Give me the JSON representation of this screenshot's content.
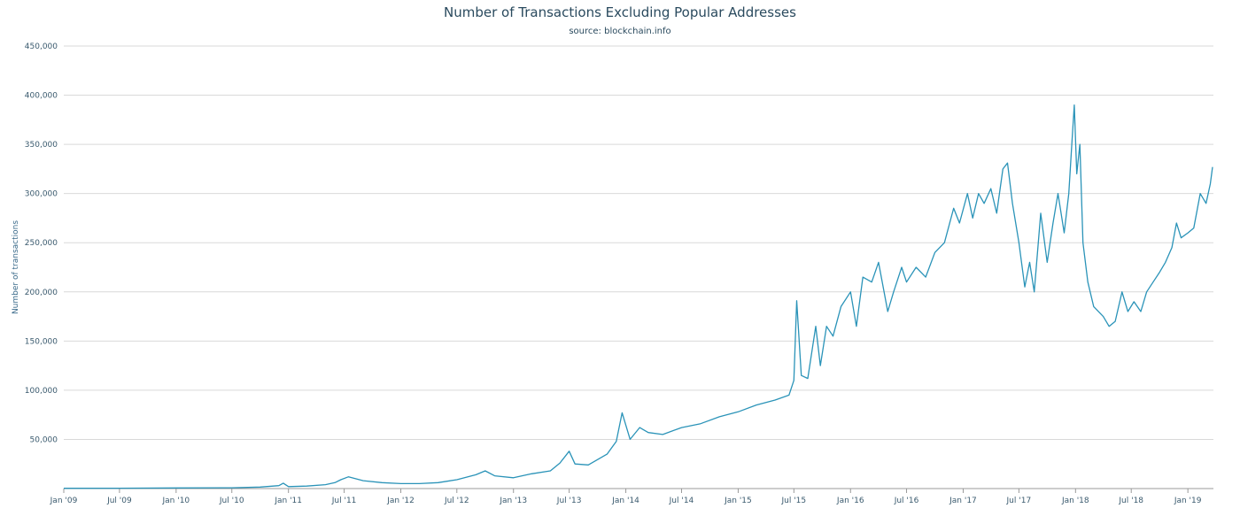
{
  "chart_data": {
    "type": "line",
    "title": "Number of Transactions Excluding Popular Addresses",
    "subtitle": "source: blockchain.info",
    "xlabel": "",
    "ylabel": "Number of transactions",
    "ylim": [
      0,
      450000
    ],
    "xlim": [
      "2009-01-01",
      "2019-03-25"
    ],
    "yticks": [
      {
        "value": 50000,
        "label": "50,000"
      },
      {
        "value": 100000,
        "label": "100,000"
      },
      {
        "value": 150000,
        "label": "150,000"
      },
      {
        "value": 200000,
        "label": "200,000"
      },
      {
        "value": 250000,
        "label": "250,000"
      },
      {
        "value": 300000,
        "label": "300,000"
      },
      {
        "value": 350000,
        "label": "350,000"
      },
      {
        "value": 400000,
        "label": "400,000"
      },
      {
        "value": 450000,
        "label": "450,000"
      }
    ],
    "xticks": [
      {
        "date": "2009-01-01",
        "label": "Jan '09"
      },
      {
        "date": "2009-07-01",
        "label": "Jul '09"
      },
      {
        "date": "2010-01-01",
        "label": "Jan '10"
      },
      {
        "date": "2010-07-01",
        "label": "Jul '10"
      },
      {
        "date": "2011-01-01",
        "label": "Jan '11"
      },
      {
        "date": "2011-07-01",
        "label": "Jul '11"
      },
      {
        "date": "2012-01-01",
        "label": "Jan '12"
      },
      {
        "date": "2012-07-01",
        "label": "Jul '12"
      },
      {
        "date": "2013-01-01",
        "label": "Jan '13"
      },
      {
        "date": "2013-07-01",
        "label": "Jul '13"
      },
      {
        "date": "2014-01-01",
        "label": "Jan '14"
      },
      {
        "date": "2014-07-01",
        "label": "Jul '14"
      },
      {
        "date": "2015-01-01",
        "label": "Jan '15"
      },
      {
        "date": "2015-07-01",
        "label": "Jul '15"
      },
      {
        "date": "2016-01-01",
        "label": "Jan '16"
      },
      {
        "date": "2016-07-01",
        "label": "Jul '16"
      },
      {
        "date": "2017-01-01",
        "label": "Jan '17"
      },
      {
        "date": "2017-07-01",
        "label": "Jul '17"
      },
      {
        "date": "2018-01-01",
        "label": "Jan '18"
      },
      {
        "date": "2018-07-01",
        "label": "Jul '18"
      },
      {
        "date": "2019-01-01",
        "label": "Jan '19"
      }
    ],
    "grid": true,
    "legend": "none",
    "line_color": "#2a93b8",
    "series": [
      {
        "x": [
          "2009-01-01",
          "2009-07-01",
          "2010-01-01",
          "2010-07-01",
          "2010-10-01",
          "2010-12-01",
          "2010-12-15",
          "2011-01-01",
          "2011-03-01",
          "2011-05-01",
          "2011-06-01",
          "2011-06-20",
          "2011-07-15",
          "2011-09-01",
          "2011-11-01",
          "2012-01-01",
          "2012-03-01",
          "2012-05-01",
          "2012-07-01",
          "2012-09-01",
          "2012-10-01",
          "2012-11-01",
          "2013-01-01",
          "2013-03-01",
          "2013-05-01",
          "2013-06-01",
          "2013-07-01",
          "2013-07-20",
          "2013-09-01",
          "2013-11-01",
          "2013-12-01",
          "2013-12-20",
          "2014-01-15",
          "2014-02-15",
          "2014-03-15",
          "2014-05-01",
          "2014-07-01",
          "2014-09-01",
          "2014-11-01",
          "2015-01-01",
          "2015-03-01",
          "2015-05-01",
          "2015-06-15",
          "2015-07-01",
          "2015-07-10",
          "2015-07-25",
          "2015-08-15",
          "2015-09-10",
          "2015-09-25",
          "2015-10-15",
          "2015-11-05",
          "2015-12-01",
          "2016-01-01",
          "2016-01-20",
          "2016-02-10",
          "2016-03-10",
          "2016-04-01",
          "2016-05-01",
          "2016-05-20",
          "2016-06-15",
          "2016-07-01",
          "2016-08-01",
          "2016-09-01",
          "2016-10-01",
          "2016-11-01",
          "2016-12-01",
          "2016-12-20",
          "2017-01-15",
          "2017-02-01",
          "2017-02-20",
          "2017-03-10",
          "2017-04-01",
          "2017-04-20",
          "2017-05-10",
          "2017-05-25",
          "2017-06-10",
          "2017-07-01",
          "2017-07-20",
          "2017-08-05",
          "2017-08-20",
          "2017-09-10",
          "2017-10-01",
          "2017-10-20",
          "2017-11-05",
          "2017-11-25",
          "2017-12-10",
          "2017-12-20",
          "2017-12-28",
          "2018-01-05",
          "2018-01-15",
          "2018-01-25",
          "2018-02-10",
          "2018-03-01",
          "2018-04-01",
          "2018-04-20",
          "2018-05-10",
          "2018-06-01",
          "2018-06-20",
          "2018-07-10",
          "2018-08-01",
          "2018-08-20",
          "2018-09-10",
          "2018-10-01",
          "2018-10-20",
          "2018-11-10",
          "2018-11-25",
          "2018-12-10",
          "2019-01-01",
          "2019-01-20",
          "2019-02-10",
          "2019-03-01",
          "2019-03-15",
          "2019-03-22"
        ],
        "y": [
          300,
          400,
          600,
          800,
          1500,
          3000,
          5500,
          2000,
          2500,
          4000,
          6000,
          9000,
          12000,
          8000,
          6000,
          5000,
          5000,
          6000,
          9000,
          14000,
          18000,
          13000,
          11000,
          15000,
          18000,
          26000,
          38000,
          25000,
          24000,
          35000,
          48000,
          77000,
          50000,
          62000,
          57000,
          55000,
          62000,
          66000,
          73000,
          78000,
          85000,
          90000,
          95000,
          110000,
          191000,
          115000,
          112000,
          165000,
          125000,
          165000,
          155000,
          185000,
          200000,
          165000,
          215000,
          210000,
          230000,
          180000,
          200000,
          225000,
          210000,
          225000,
          215000,
          240000,
          250000,
          285000,
          270000,
          300000,
          275000,
          300000,
          290000,
          305000,
          280000,
          325000,
          331000,
          290000,
          250000,
          205000,
          230000,
          200000,
          280000,
          230000,
          270000,
          300000,
          260000,
          300000,
          350000,
          390000,
          320000,
          350000,
          250000,
          210000,
          185000,
          175000,
          165000,
          170000,
          200000,
          180000,
          190000,
          180000,
          200000,
          210000,
          220000,
          230000,
          245000,
          270000,
          255000,
          260000,
          265000,
          300000,
          290000,
          310000,
          327000
        ]
      }
    ]
  }
}
